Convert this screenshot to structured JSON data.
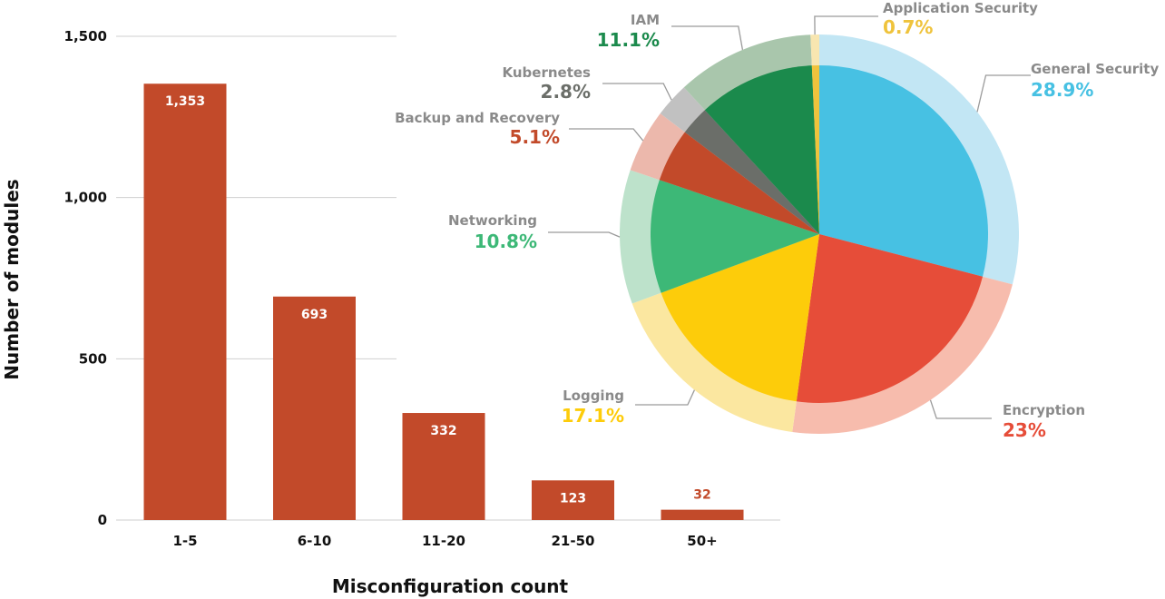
{
  "chart_data": [
    {
      "type": "bar",
      "title": "",
      "xlabel": "Misconfiguration count",
      "ylabel": "Number of modules",
      "categories": [
        "1-5",
        "6-10",
        "11-20",
        "21-50",
        "50+"
      ],
      "values": [
        1353,
        693,
        332,
        123,
        32
      ],
      "value_labels": [
        "1,353",
        "693",
        "332",
        "123",
        "32"
      ],
      "ylim": [
        0,
        1500
      ],
      "yticks": [
        0,
        500,
        1000,
        1500
      ],
      "ytick_labels": [
        "0",
        "500",
        "1,000",
        "1,500"
      ],
      "grid": true,
      "bar_color": "#c24a2a"
    },
    {
      "type": "pie",
      "title": "",
      "slices": [
        {
          "name": "General Security",
          "value": 28.9,
          "label": "28.9%",
          "color": "#47c1e3",
          "ring_color": "#c2e6f4"
        },
        {
          "name": "Encryption",
          "value": 23,
          "label": "23%",
          "color": "#e64d39",
          "ring_color": "#f7bcad"
        },
        {
          "name": "Logging",
          "value": 17.1,
          "label": "17.1%",
          "color": "#fdcc0a",
          "ring_color": "#fbe7a0"
        },
        {
          "name": "Networking",
          "value": 10.8,
          "label": "10.8%",
          "color": "#3db877",
          "ring_color": "#bde2cb"
        },
        {
          "name": "Backup and Recovery",
          "value": 5.1,
          "label": "5.1%",
          "color": "#c24a2a",
          "ring_color": "#ecb8ac"
        },
        {
          "name": "Kubernetes",
          "value": 2.8,
          "label": "2.8%",
          "color": "#6b6e69",
          "ring_color": "#c1c1c1"
        },
        {
          "name": "IAM",
          "value": 11.1,
          "label": "11.1%",
          "color": "#1b8a4c",
          "ring_color": "#a9c6ac"
        },
        {
          "name": "Application Security",
          "value": 0.7,
          "label": "0.7%",
          "color": "#efc33c",
          "ring_color": "#f8e6b0"
        }
      ]
    }
  ],
  "colors": {
    "label_gray": "#8a8a8a",
    "grid": "#cfcfcf",
    "leader_line": "#9a9a9a",
    "dark_text": "#111111"
  }
}
